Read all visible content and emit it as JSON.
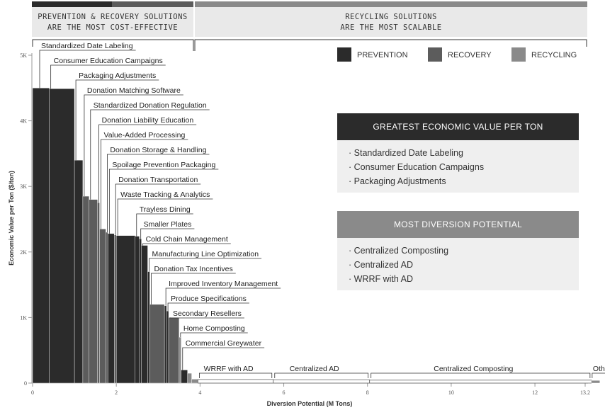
{
  "bands": {
    "left": {
      "line1": "PREVENTION & RECOVERY SOLUTIONS",
      "line2": "ARE THE MOST COST-EFFECTIVE"
    },
    "right": {
      "line1": "RECYCLING SOLUTIONS",
      "line2": "ARE THE MOST SCALABLE"
    }
  },
  "colors": {
    "prevention": "#2b2b2b",
    "recovery": "#5c5c5c",
    "recycling": "#8a8a8a",
    "band_bg": "#e9e9e9"
  },
  "legend": [
    {
      "key": "prevention",
      "label": "PREVENTION"
    },
    {
      "key": "recovery",
      "label": "RECOVERY"
    },
    {
      "key": "recycling",
      "label": "RECYCLING"
    }
  ],
  "boxes": [
    {
      "title": "GREATEST ECONOMIC VALUE PER TON",
      "color": "#2b2b2b",
      "items": [
        "· Standardized Date Labeling",
        "· Consumer Education Campaigns",
        "· Packaging Adjustments"
      ]
    },
    {
      "title": "MOST DIVERSION POTENTIAL",
      "color": "#8a8a8a",
      "items": [
        "· Centralized Composting",
        "· Centralized AD",
        "· WRRF with AD"
      ]
    }
  ],
  "chart_data": {
    "type": "bar",
    "xlabel": "Diversion Potential (M Tons)",
    "ylabel": "Economic Value per Ton ($/ton)",
    "xlim": [
      0,
      13.2
    ],
    "ylim": [
      0,
      5000
    ],
    "x_ticks": [
      "0",
      "2",
      "4",
      "6",
      "8",
      "10",
      "12",
      "13.2"
    ],
    "y_ticks": [
      "0",
      "1K",
      "2K",
      "3K",
      "4K",
      "5K"
    ],
    "series": [
      {
        "label": "Standardized Date Labeling",
        "category": "prevention",
        "width": 0.4,
        "value": 4500
      },
      {
        "label": "Consumer Education Campaigns",
        "category": "prevention",
        "width": 0.6,
        "value": 4490
      },
      {
        "label": "Packaging Adjustments",
        "category": "prevention",
        "width": 0.2,
        "value": 3400
      },
      {
        "label": "Donation Matching Software",
        "category": "recovery",
        "width": 0.15,
        "value": 2850
      },
      {
        "label": "Standardized Donation Regulation",
        "category": "recovery",
        "width": 0.2,
        "value": 2800
      },
      {
        "label": "Donation Liability Education",
        "category": "recovery",
        "width": 0.05,
        "value": 2750
      },
      {
        "label": "Value-Added Processing",
        "category": "recovery",
        "width": 0.15,
        "value": 2350
      },
      {
        "label": "Donation Storage & Handling",
        "category": "recovery",
        "width": 0.05,
        "value": 2300
      },
      {
        "label": "Spoilage Prevention Packaging",
        "category": "prevention",
        "width": 0.15,
        "value": 2280
      },
      {
        "label": "Donation Transportation",
        "category": "recovery",
        "width": 0.05,
        "value": 2260
      },
      {
        "label": "Waste Tracking & Analytics",
        "category": "prevention",
        "width": 0.45,
        "value": 2250
      },
      {
        "label": "Trayless Dining",
        "category": "prevention",
        "width": 0.1,
        "value": 2240
      },
      {
        "label": "Smaller Plates",
        "category": "prevention",
        "width": 0.05,
        "value": 2200
      },
      {
        "label": "Cold Chain Management",
        "category": "prevention",
        "width": 0.15,
        "value": 2100
      },
      {
        "label": "Manufacturing Line Optimization",
        "category": "prevention",
        "width": 0.05,
        "value": 1700
      },
      {
        "label": "Donation Tax Incentives",
        "category": "recovery",
        "width": 0.35,
        "value": 1200
      },
      {
        "label": "Improved Inventory Management",
        "category": "prevention",
        "width": 0.05,
        "value": 1180
      },
      {
        "label": "Produce Specifications",
        "category": "prevention",
        "width": 0.05,
        "value": 1100
      },
      {
        "label": "Secondary Resellers",
        "category": "recovery",
        "width": 0.25,
        "value": 1000
      },
      {
        "label": "Home Composting",
        "category": "recycling",
        "width": 0.05,
        "value": 700
      },
      {
        "label": "Commercial Greywater",
        "category": "prevention",
        "width": 0.15,
        "value": 200
      },
      {
        "label": "",
        "category": "recycling",
        "width": 0.1,
        "value": 150
      },
      {
        "label": "",
        "category": "recycling",
        "width": 0.15,
        "value": 60
      },
      {
        "label": "WRRF with AD",
        "category": "recycling",
        "width": 1.8,
        "value": 55
      },
      {
        "label": "Centralized AD",
        "category": "recycling",
        "width": 2.3,
        "value": 50
      },
      {
        "label": "Centralized Composting",
        "category": "recycling",
        "width": 5.3,
        "value": 45
      },
      {
        "label": "Other",
        "category": "recycling",
        "width": 0.2,
        "value": 40
      }
    ]
  }
}
